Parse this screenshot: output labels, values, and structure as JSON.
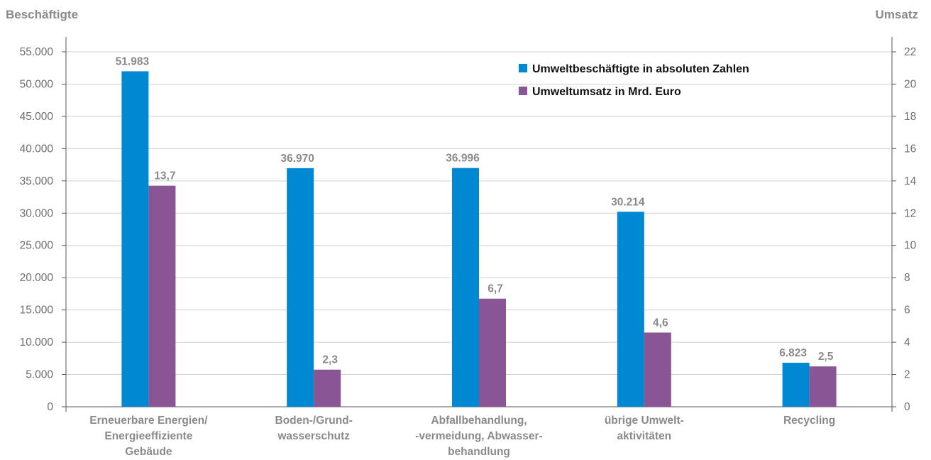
{
  "chart_data": {
    "type": "bar",
    "left_axis_title": "Beschäftigte",
    "right_axis_title": "Umsatz",
    "categories": [
      [
        "Erneuerbare Energien/",
        "Energieeffiziente",
        "Gebäude"
      ],
      [
        "Boden-/Grund-",
        "wasserschutz"
      ],
      [
        "Abfallbehandlung,",
        "-vermeidung, Abwasser-",
        "behandlung"
      ],
      [
        "übrige Umwelt-",
        "aktivitäten"
      ],
      [
        "Recycling"
      ]
    ],
    "series": [
      {
        "name": "Umweltbeschäftigte in absoluten Zahlen",
        "axis": "left",
        "color": "#0088d2",
        "values": [
          51983,
          36970,
          36996,
          30214,
          6823
        ],
        "labels": [
          "51.983",
          "36.970",
          "36.996",
          "30.214",
          "6.823"
        ]
      },
      {
        "name": "Umweltumsatz in Mrd. Euro",
        "axis": "right",
        "color": "#8a5595",
        "values": [
          13.7,
          2.3,
          6.7,
          4.6,
          2.5
        ],
        "labels": [
          "13,7",
          "2,3",
          "6,7",
          "4,6",
          "2,5"
        ]
      }
    ],
    "left_axis": {
      "range": [
        0,
        55000
      ],
      "ticks": [
        0,
        5000,
        10000,
        15000,
        20000,
        25000,
        30000,
        35000,
        40000,
        45000,
        50000,
        55000
      ],
      "tick_labels": [
        "0",
        "5.000",
        "10.000",
        "15.000",
        "20.000",
        "25.000",
        "30.000",
        "35.000",
        "40.000",
        "45.000",
        "50.000",
        "55.000"
      ]
    },
    "right_axis": {
      "range": [
        0,
        22
      ],
      "ticks": [
        0,
        2,
        4,
        6,
        8,
        10,
        12,
        14,
        16,
        18,
        20,
        22
      ],
      "tick_labels": [
        "0",
        "2",
        "4",
        "6",
        "8",
        "10",
        "12",
        "14",
        "16",
        "18",
        "20",
        "22"
      ]
    },
    "grid": true,
    "legend_position": "top-right",
    "colors": {
      "grid": "#d0d0d0",
      "axis": "#555555"
    }
  }
}
